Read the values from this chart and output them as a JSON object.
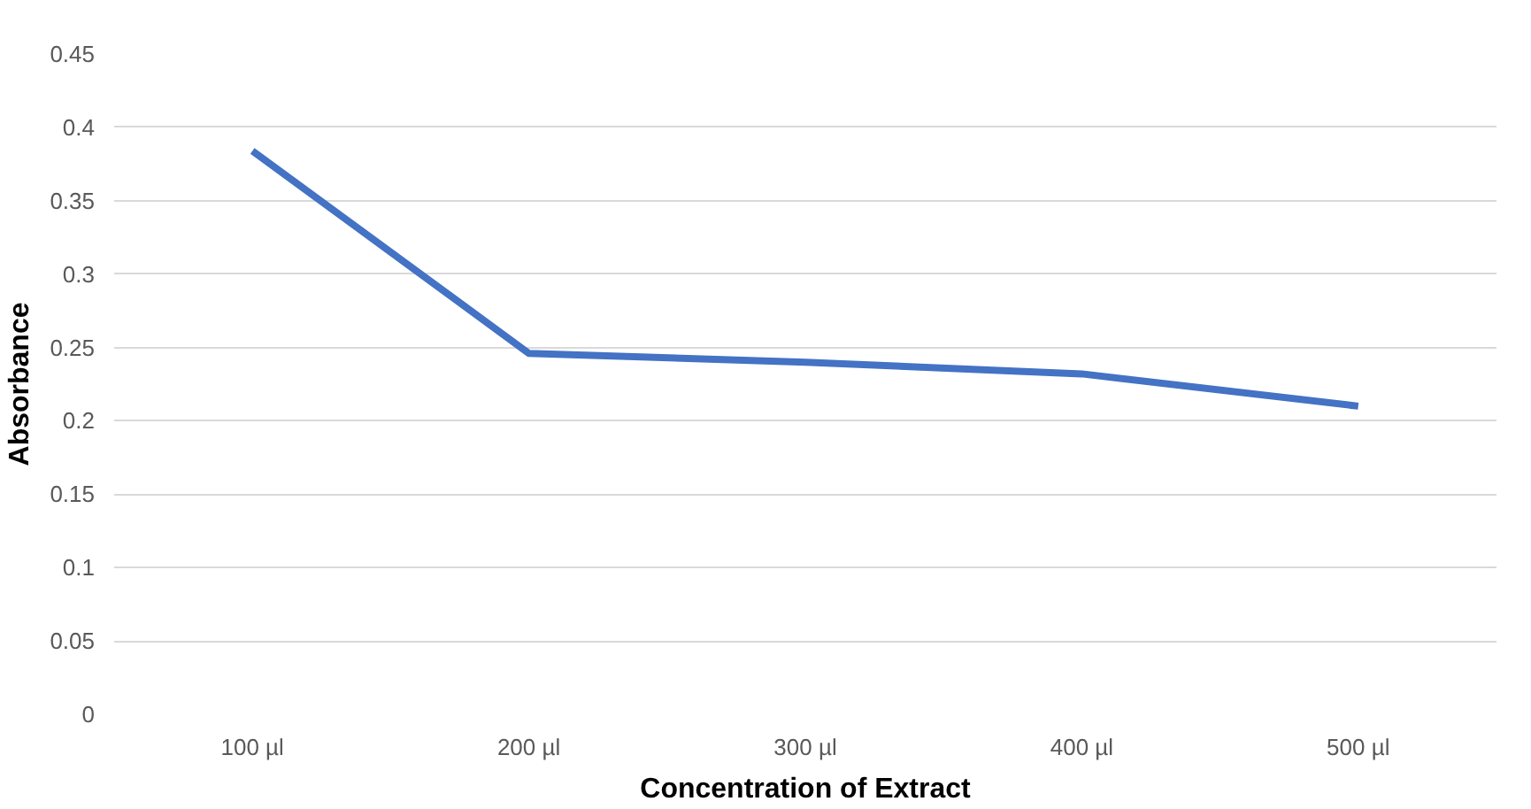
{
  "chart_data": {
    "type": "line",
    "xlabel": "Concentration of Extract",
    "ylabel": "Absorbance",
    "categories": [
      "100 µl",
      "200 µl",
      "300 µl",
      "400 µl",
      "500 µl"
    ],
    "series": [
      {
        "color": "#4472c4",
        "values": [
          0.384,
          0.246,
          0.24,
          0.232,
          0.21
        ]
      }
    ],
    "ylim": [
      0,
      0.45
    ],
    "yticks": [
      0,
      0.05,
      0.1,
      0.15,
      0.2,
      0.25,
      0.3,
      0.35,
      0.4,
      0.45
    ],
    "grid": "y",
    "marker": "none",
    "line_style": "solid"
  }
}
